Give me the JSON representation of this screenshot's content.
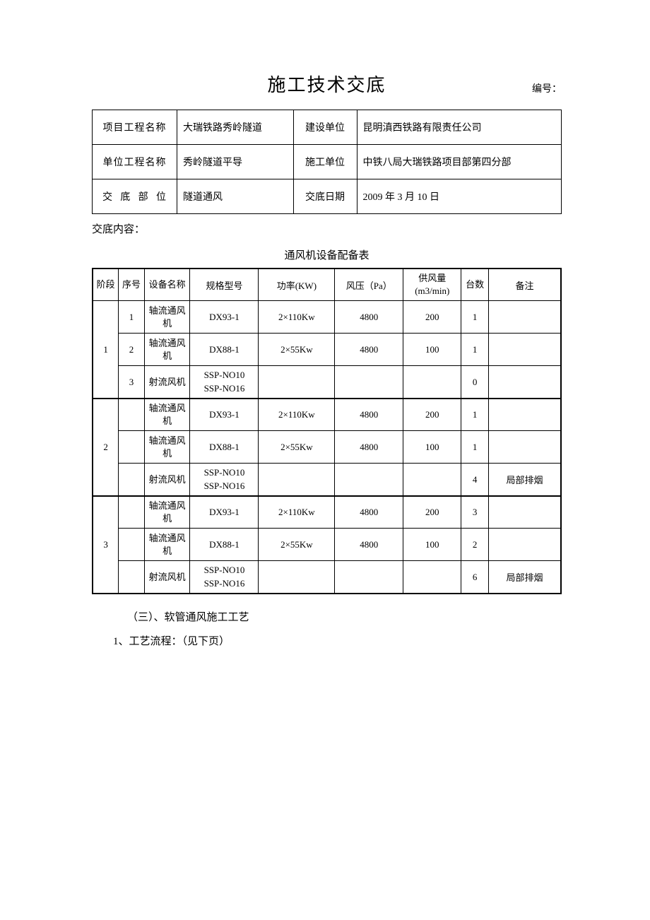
{
  "header": {
    "title": "施工技术交底",
    "number_label": "编号："
  },
  "info": {
    "project_name_label": "项目工程名称",
    "project_name": "大瑞铁路秀岭隧道",
    "construction_unit_label": "建设单位",
    "construction_unit": "昆明滇西铁路有限责任公司",
    "unit_project_label": "单位工程名称",
    "unit_project": "秀岭隧道平导",
    "builder_unit_label": "施工单位",
    "builder_unit": "中铁八局大瑞铁路项目部第四分部",
    "disclosure_part_label": "交底部位",
    "disclosure_part": "隧道通风",
    "disclosure_date_label": "交底日期",
    "disclosure_date": "2009 年 3 月 10 日"
  },
  "content_label": "交底内容：",
  "equip": {
    "title": "通风机设备配备表",
    "headers": {
      "stage": "阶段",
      "seq": "序号",
      "name": "设备名称",
      "model": "规格型号",
      "power": "功率(KW)",
      "pressure": "风压（Pa）",
      "flow": "供风量(m3/min)",
      "qty": "台数",
      "remark": "备注"
    },
    "stages": [
      {
        "stage": "1",
        "rows": [
          {
            "seq": "1",
            "name": "轴流通风机",
            "model": "DX93-1",
            "power": "2×110Kw",
            "pressure": "4800",
            "flow": "200",
            "qty": "1",
            "remark": ""
          },
          {
            "seq": "2",
            "name": "轴流通风机",
            "model": "DX88-1",
            "power": "2×55Kw",
            "pressure": "4800",
            "flow": "100",
            "qty": "1",
            "remark": ""
          },
          {
            "seq": "3",
            "name": "射流风机",
            "model": "SSP-NO10 SSP-NO16",
            "power": "",
            "pressure": "",
            "flow": "",
            "qty": "0",
            "remark": ""
          }
        ]
      },
      {
        "stage": "2",
        "rows": [
          {
            "seq": "",
            "name": "轴流通风机",
            "model": "DX93-1",
            "power": "2×110Kw",
            "pressure": "4800",
            "flow": "200",
            "qty": "1",
            "remark": ""
          },
          {
            "seq": "",
            "name": "轴流通风机",
            "model": "DX88-1",
            "power": "2×55Kw",
            "pressure": "4800",
            "flow": "100",
            "qty": "1",
            "remark": ""
          },
          {
            "seq": "",
            "name": "射流风机",
            "model": "SSP-NO10 SSP-NO16",
            "power": "",
            "pressure": "",
            "flow": "",
            "qty": "4",
            "remark": "局部排烟"
          }
        ]
      },
      {
        "stage": "3",
        "rows": [
          {
            "seq": "",
            "name": "轴流通风机",
            "model": "DX93-1",
            "power": "2×110Kw",
            "pressure": "4800",
            "flow": "200",
            "qty": "3",
            "remark": ""
          },
          {
            "seq": "",
            "name": "轴流通风机",
            "model": "DX88-1",
            "power": "2×55Kw",
            "pressure": "4800",
            "flow": "100",
            "qty": "2",
            "remark": ""
          },
          {
            "seq": "",
            "name": "射流风机",
            "model": "SSP-NO10 SSP-NO16",
            "power": "",
            "pressure": "",
            "flow": "",
            "qty": "6",
            "remark": "局部排烟"
          }
        ]
      }
    ]
  },
  "body": {
    "line1": "（三）、软管通风施工工艺",
    "line2": "1、工艺流程：（见下页）"
  }
}
